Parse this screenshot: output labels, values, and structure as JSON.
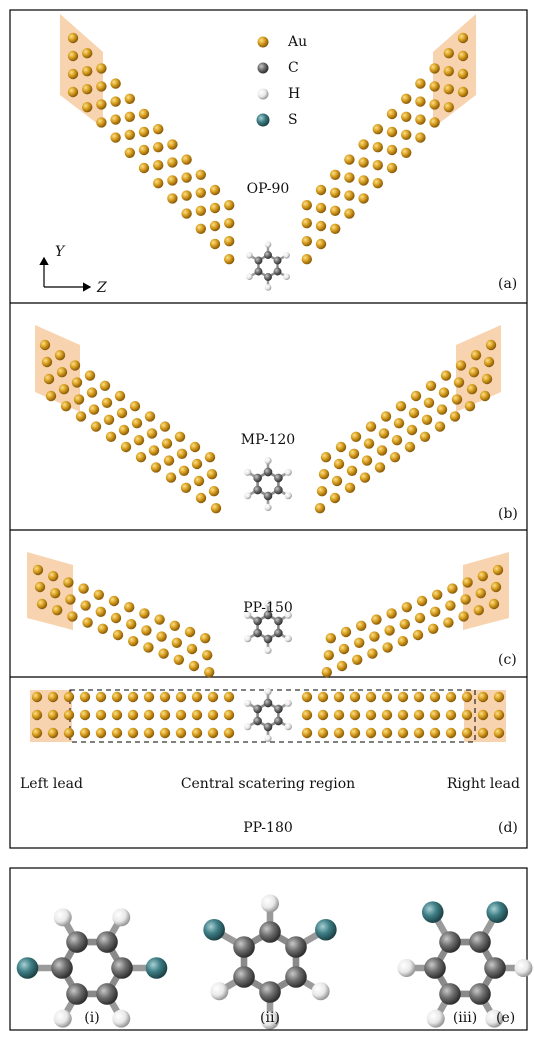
{
  "legend": [
    "Au",
    "C",
    "H",
    "S"
  ],
  "axes": {
    "y": "Y",
    "z": "Z"
  },
  "panels": [
    {
      "name": "OP-90",
      "label": "(a)"
    },
    {
      "name": "MP-120",
      "label": "(b)"
    },
    {
      "name": "PP-150",
      "label": "(c)"
    },
    {
      "name": "PP-180",
      "label": "(d)",
      "regions": [
        "Left lead",
        "Central scatering region",
        "Right lead"
      ]
    }
  ],
  "molecules": {
    "labels": [
      "(i)",
      "(ii)",
      "(iii)"
    ],
    "panel_label": "(e)"
  }
}
